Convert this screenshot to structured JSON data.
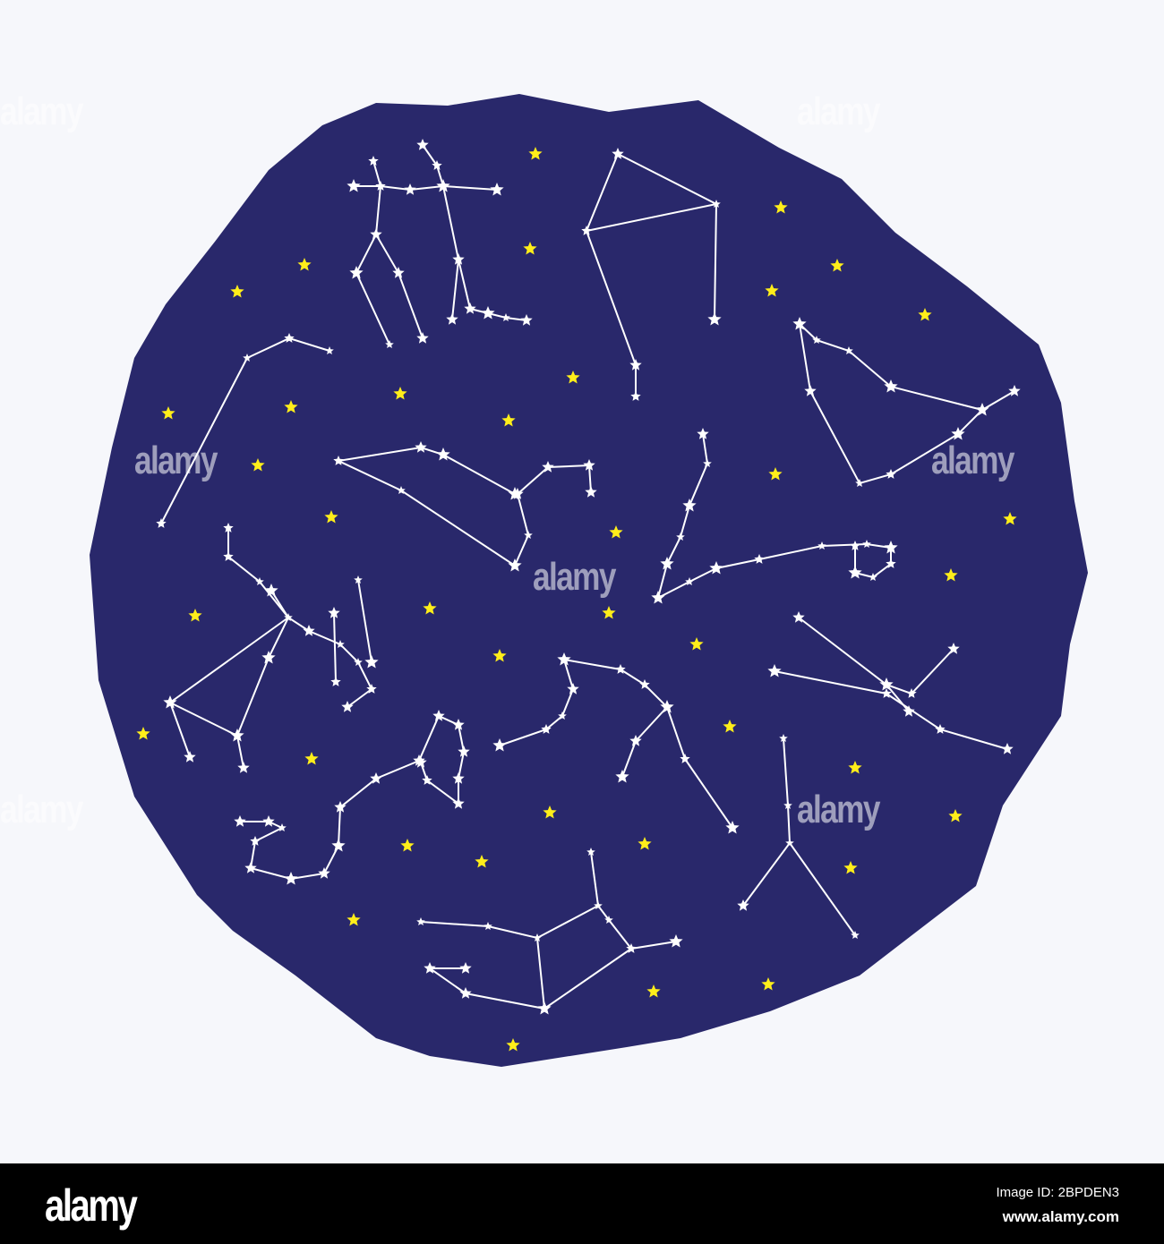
{
  "colors": {
    "background": "#f6f7fb",
    "sky": "#29286b",
    "constellation": "#ffffff",
    "accent_star": "#ffee1a",
    "bar": "#000000"
  },
  "watermark": "alamy",
  "footer": {
    "logo": "alamy",
    "image_id": "Image ID: 2BPDEN3",
    "website": "www.alamy.com"
  }
}
